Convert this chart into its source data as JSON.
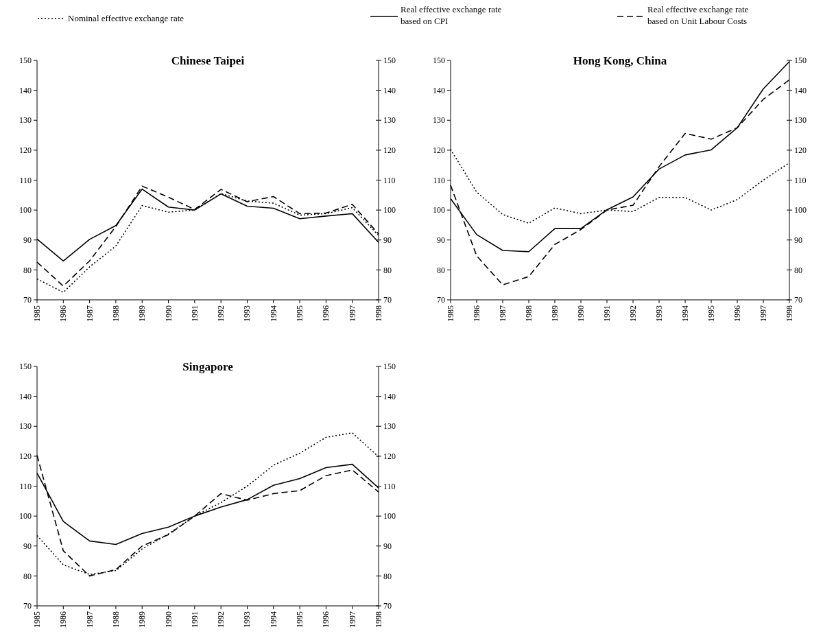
{
  "chart_data": [
    {
      "type": "line",
      "title": "Chinese Taipei",
      "categories": [
        "1985",
        "1986",
        "1987",
        "1988",
        "1989",
        "1990",
        "1991",
        "1992",
        "1993",
        "1994",
        "1995",
        "1996",
        "1997",
        "1998"
      ],
      "ylim": [
        70,
        150
      ],
      "yticks": [
        70,
        80,
        90,
        100,
        110,
        120,
        130,
        140,
        150
      ],
      "y2lim": [
        70,
        150
      ],
      "y2ticks": [
        70,
        80,
        90,
        100,
        110,
        120,
        130,
        140,
        150
      ],
      "legend": "top",
      "marker": "none",
      "series": [
        {
          "name": "Nominal effective exchange rate",
          "color": "#000000",
          "line_style": "dotted",
          "values": [
            77,
            72.5,
            81,
            88,
            101.5,
            99.3,
            100,
            105.5,
            103,
            102.3,
            98.3,
            98.8,
            100.8,
            91.5
          ]
        },
        {
          "name": "Real effective exchange rate based on CPI",
          "color": "#000000",
          "line_style": "solid",
          "values": [
            90.3,
            83,
            90.2,
            94.8,
            107,
            101,
            100,
            105.4,
            101.3,
            100.6,
            97.1,
            98,
            98.8,
            89.2
          ]
        },
        {
          "name": "Real effective exchange rate based on Unit Labour Costs",
          "color": "#000000",
          "line_style": "dashed",
          "values": [
            82.6,
            74.6,
            83,
            94.5,
            108,
            104.3,
            100.2,
            106.9,
            102.8,
            104.5,
            98.8,
            99,
            101.9,
            92
          ]
        }
      ]
    },
    {
      "type": "line",
      "title": "Hong Kong, China",
      "categories": [
        "1985",
        "1986",
        "1987",
        "1988",
        "1989",
        "1990",
        "1991",
        "1992",
        "1993",
        "1994",
        "1995",
        "1996",
        "1997",
        "1998"
      ],
      "ylim": [
        70,
        150
      ],
      "yticks": [
        70,
        80,
        90,
        100,
        110,
        120,
        130,
        140,
        150
      ],
      "y2lim": [
        70,
        150
      ],
      "y2ticks": [
        70,
        80,
        90,
        100,
        110,
        120,
        130,
        140,
        150
      ],
      "marker": "none",
      "series": [
        {
          "color": "#000000",
          "line_style": "dotted",
          "values": [
            120.3,
            106,
            98.5,
            95.6,
            100.7,
            98.8,
            100,
            99.5,
            104.2,
            104.2,
            100,
            103.5,
            110,
            115.8
          ]
        },
        {
          "color": "#000000",
          "line_style": "solid",
          "values": [
            103.8,
            91.8,
            86.5,
            86.1,
            93.8,
            93.8,
            100.1,
            104.4,
            113.7,
            118.4,
            120.1,
            127.5,
            140.5,
            149.6
          ]
        },
        {
          "color": "#000000",
          "line_style": "dashed",
          "values": [
            108.3,
            84.7,
            75,
            77.8,
            88.5,
            93.5,
            100,
            101.6,
            114.5,
            125.6,
            123.7,
            127.5,
            137,
            143.5
          ]
        }
      ]
    },
    {
      "type": "line",
      "title": "Singapore",
      "categories": [
        "1985",
        "1986",
        "1987",
        "1988",
        "1989",
        "1990",
        "1991",
        "1992",
        "1993",
        "1994",
        "1995",
        "1996",
        "1997",
        "1998"
      ],
      "ylim": [
        70,
        150
      ],
      "yticks": [
        70,
        80,
        90,
        100,
        110,
        120,
        130,
        140,
        150
      ],
      "y2lim": [
        70,
        150
      ],
      "y2ticks": [
        70,
        80,
        90,
        100,
        110,
        120,
        130,
        140,
        150
      ],
      "marker": "none",
      "series": [
        {
          "color": "#000000",
          "line_style": "dotted",
          "values": [
            93.5,
            83.7,
            80.5,
            81.8,
            89,
            94,
            100,
            104.5,
            110,
            117,
            121,
            126.3,
            127.8,
            119.8
          ]
        },
        {
          "color": "#000000",
          "line_style": "solid",
          "values": [
            114.4,
            98.2,
            91.7,
            90.5,
            94.2,
            96.3,
            100,
            103,
            105.5,
            110.3,
            112.5,
            116.2,
            117.3,
            109.4
          ]
        },
        {
          "color": "#000000",
          "line_style": "dashed",
          "values": [
            120.3,
            88.4,
            80,
            82.1,
            90,
            93.8,
            100,
            107.5,
            105.3,
            107.5,
            108.5,
            113.5,
            115.4,
            108
          ]
        }
      ]
    }
  ]
}
